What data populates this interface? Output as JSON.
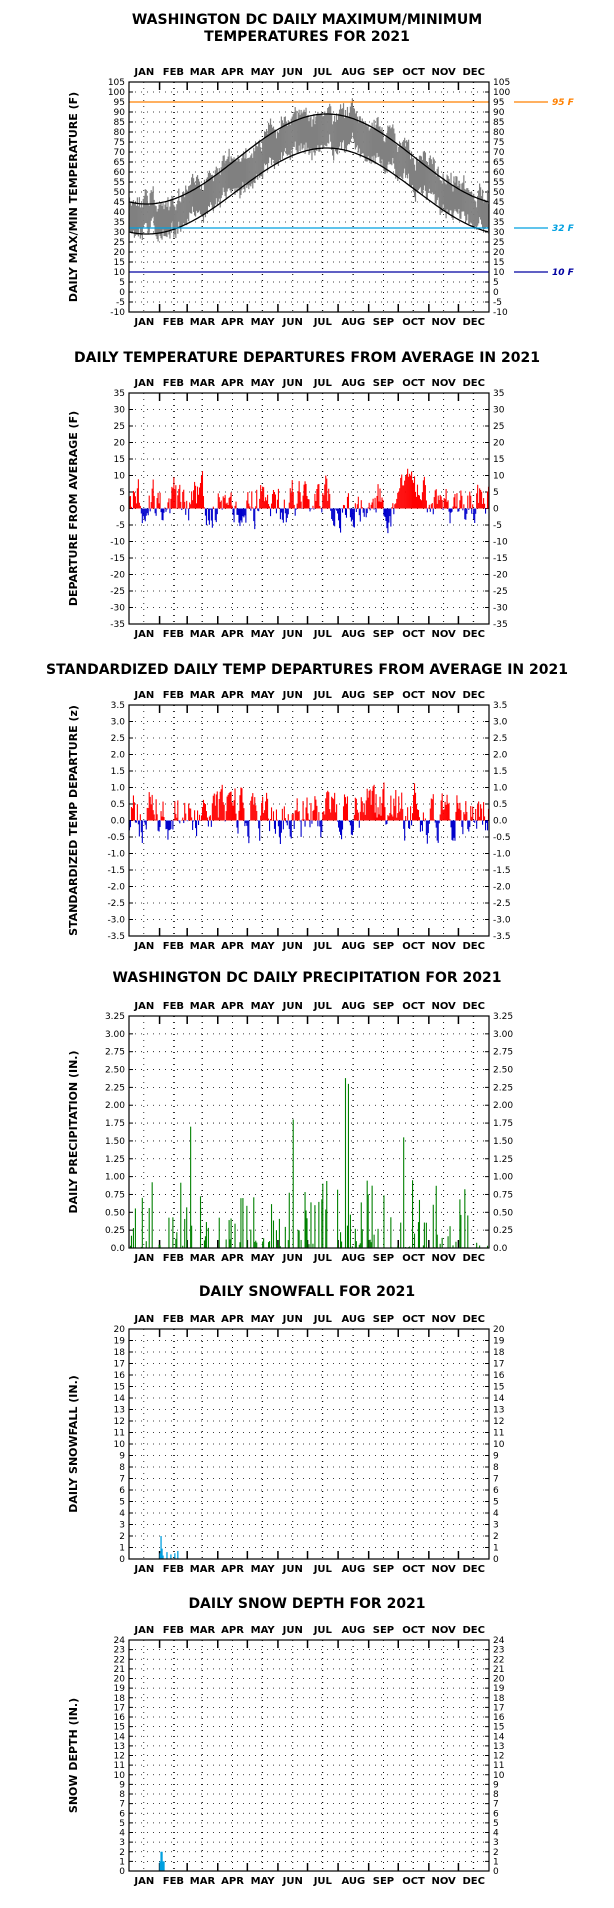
{
  "chart_data": [
    {
      "id": "temp",
      "type": "line",
      "title_lines": [
        "WASHINGTON DC DAILY MAXIMUM/MINIMUM",
        "TEMPERATURES FOR 2021"
      ],
      "ylabel": "DAILY MAX/MIN TEMPERATURE (F)",
      "months": [
        "JAN",
        "FEB",
        "MAR",
        "APR",
        "MAY",
        "JUN",
        "JUL",
        "AUG",
        "SEP",
        "OCT",
        "NOV",
        "DEC"
      ],
      "ylim": [
        -10,
        105
      ],
      "ystep": 5,
      "ticks": [
        "-10",
        "-5",
        "0",
        "5",
        "10",
        "15",
        "20",
        "25",
        "30",
        "35",
        "40",
        "45",
        "50",
        "55",
        "60",
        "65",
        "70",
        "75",
        "80",
        "85",
        "90",
        "95",
        "100",
        "105"
      ],
      "grid": true,
      "normal_high": {
        "jan": 44,
        "jul": 89
      },
      "normal_low": {
        "jan": 29,
        "jul": 72
      },
      "series_color": "#808080",
      "reference_lines": [
        {
          "value": 95,
          "label": "95 F",
          "color": "#FF8000"
        },
        {
          "value": 32,
          "label": "32 F",
          "color": "#00A0E0"
        },
        {
          "value": 10,
          "label": "10 F",
          "color": "#0000A0"
        }
      ]
    },
    {
      "id": "dep",
      "type": "bar",
      "title_lines": [
        "DAILY TEMPERATURE DEPARTURES FROM AVERAGE IN 2021"
      ],
      "ylabel": "DEPARTURE FROM AVERAGE (F)",
      "months": [
        "JAN",
        "FEB",
        "MAR",
        "APR",
        "MAY",
        "JUN",
        "JUL",
        "AUG",
        "SEP",
        "OCT",
        "NOV",
        "DEC"
      ],
      "ylim": [
        -35,
        35
      ],
      "ystep": 5,
      "ticks": [
        "-35",
        "-30",
        "-25",
        "-20",
        "-15",
        "-10",
        "-5",
        "0",
        "5",
        "10",
        "15",
        "20",
        "25",
        "30",
        "35"
      ],
      "grid": true,
      "colors": {
        "positive": "#FF0000",
        "negative": "#0000CC"
      }
    },
    {
      "id": "std",
      "type": "bar",
      "title_lines": [
        "STANDARDIZED DAILY TEMP DEPARTURES FROM AVERAGE IN 2021"
      ],
      "ylabel": "STANDARDIZED TEMP DEPARTURE (z)",
      "months": [
        "JAN",
        "FEB",
        "MAR",
        "APR",
        "MAY",
        "JUN",
        "JUL",
        "AUG",
        "SEP",
        "OCT",
        "NOV",
        "DEC"
      ],
      "ylim": [
        -3.5,
        3.5
      ],
      "ystep": 0.5,
      "ticks": [
        "-3.5",
        "-3.0",
        "-2.5",
        "-2.0",
        "-1.5",
        "-1.0",
        "-0.5",
        "0.0",
        "0.5",
        "1.0",
        "1.5",
        "2.0",
        "2.5",
        "3.0",
        "3.5"
      ],
      "grid": true,
      "colors": {
        "positive": "#FF0000",
        "negative": "#0000CC"
      }
    },
    {
      "id": "precip",
      "type": "bar",
      "title_lines": [
        "WASHINGTON DC DAILY PRECIPITATION FOR 2021"
      ],
      "ylabel": "DAILY PRECIPITATION (IN.)",
      "months": [
        "JAN",
        "FEB",
        "MAR",
        "APR",
        "MAY",
        "JUN",
        "JUL",
        "AUG",
        "SEP",
        "OCT",
        "NOV",
        "DEC"
      ],
      "ylim": [
        0,
        3.25
      ],
      "ystep": 0.25,
      "ticks": [
        "0.0",
        "0.25",
        "0.50",
        "0.75",
        "1.00",
        "1.25",
        "1.50",
        "1.75",
        "2.00",
        "2.25",
        "2.50",
        "2.75",
        "3.00",
        "3.25"
      ],
      "grid": true,
      "color": "#008000",
      "notable": [
        {
          "day": 62,
          "value": 1.7
        },
        {
          "day": 166,
          "value": 1.8
        },
        {
          "day": 219,
          "value": 2.38
        },
        {
          "day": 222,
          "value": 2.3
        },
        {
          "day": 278,
          "value": 1.55
        }
      ]
    },
    {
      "id": "snow",
      "type": "bar",
      "title_lines": [
        "DAILY SNOWFALL FOR 2021"
      ],
      "ylabel": "DAILY SNOWFALL (IN.)",
      "months": [
        "JAN",
        "FEB",
        "MAR",
        "APR",
        "MAY",
        "JUN",
        "JUL",
        "AUG",
        "SEP",
        "OCT",
        "NOV",
        "DEC"
      ],
      "ylim": [
        0,
        20
      ],
      "ystep": 1,
      "ticks": [
        "0",
        "1",
        "2",
        "3",
        "4",
        "5",
        "6",
        "7",
        "8",
        "9",
        "10",
        "11",
        "12",
        "13",
        "14",
        "15",
        "16",
        "17",
        "18",
        "19",
        "20"
      ],
      "grid": true,
      "color": "#00A0E0",
      "events": [
        {
          "day": 31,
          "value": 0.5
        },
        {
          "day": 32,
          "value": 2.0
        },
        {
          "day": 33,
          "value": 0.9
        },
        {
          "day": 34,
          "value": 0.3
        },
        {
          "day": 38,
          "value": 0.6
        },
        {
          "day": 42,
          "value": 0.4
        },
        {
          "day": 46,
          "value": 0.5
        },
        {
          "day": 49,
          "value": 0.7
        }
      ]
    },
    {
      "id": "depth",
      "type": "bar",
      "title_lines": [
        "DAILY SNOW DEPTH FOR 2021"
      ],
      "ylabel": "SNOW DEPTH (IN.)",
      "months": [
        "JAN",
        "FEB",
        "MAR",
        "APR",
        "MAY",
        "JUN",
        "JUL",
        "AUG",
        "SEP",
        "OCT",
        "NOV",
        "DEC"
      ],
      "ylim": [
        0,
        24
      ],
      "ystep": 1,
      "ticks": [
        "0",
        "1",
        "2",
        "3",
        "4",
        "5",
        "6",
        "7",
        "8",
        "9",
        "10",
        "11",
        "12",
        "13",
        "14",
        "15",
        "16",
        "17",
        "18",
        "19",
        "20",
        "21",
        "22",
        "23",
        "24"
      ],
      "grid": true,
      "color": "#00A0E0",
      "events": [
        {
          "day": 31,
          "value": 1
        },
        {
          "day": 32,
          "value": 2
        },
        {
          "day": 33,
          "value": 2
        },
        {
          "day": 34,
          "value": 1
        },
        {
          "day": 35,
          "value": 1
        }
      ]
    }
  ]
}
